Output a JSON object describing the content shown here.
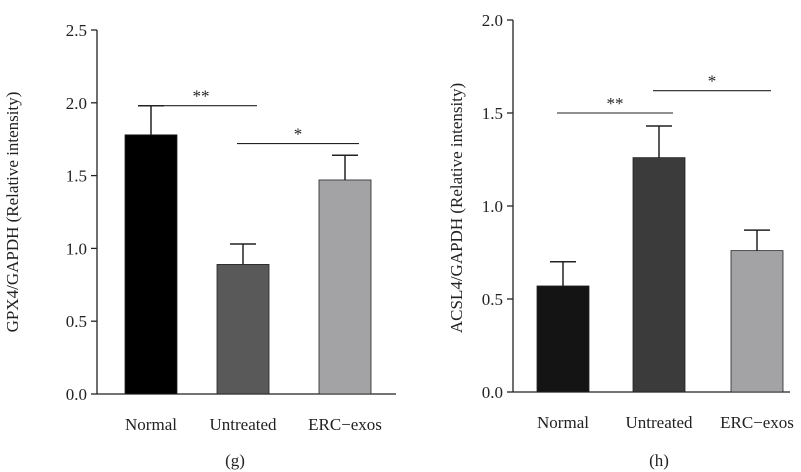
{
  "chart_data": [
    {
      "type": "bar",
      "panel_label": "(g)",
      "ylabel": "GPX4/GAPDH (Relative intensity)",
      "categories": [
        "Normal",
        "Untreated",
        "ERC−exos"
      ],
      "values": [
        1.78,
        0.89,
        1.47
      ],
      "errors": [
        0.2,
        0.14,
        0.17
      ],
      "colors": [
        "#000000",
        "#595959",
        "#a3a3a6"
      ],
      "ylim": [
        0,
        2.5
      ],
      "yticks": [
        "0.0",
        "0.5",
        "1.0",
        "1.5",
        "2.0",
        "2.5"
      ],
      "significance": [
        {
          "from": 0,
          "to": 1,
          "label": "**",
          "y": 1.98
        },
        {
          "from": 1,
          "to": 2,
          "label": "*",
          "y": 1.72
        }
      ],
      "grid": false
    },
    {
      "type": "bar",
      "panel_label": "(h)",
      "ylabel": "ACSL4/GAPDH (Relative intensity)",
      "categories": [
        "Normal",
        "Untreated",
        "ERC−exos"
      ],
      "values": [
        0.57,
        1.26,
        0.76
      ],
      "errors": [
        0.13,
        0.17,
        0.11
      ],
      "colors": [
        "#141414",
        "#3b3b3b",
        "#a3a3a6"
      ],
      "ylim": [
        0,
        2.0
      ],
      "yticks": [
        "0.0",
        "0.5",
        "1.0",
        "1.5",
        "2.0"
      ],
      "significance": [
        {
          "from": 0,
          "to": 1,
          "label": "**",
          "y": 1.5
        },
        {
          "from": 1,
          "to": 2,
          "label": "*",
          "y": 1.62
        }
      ],
      "grid": false
    }
  ]
}
